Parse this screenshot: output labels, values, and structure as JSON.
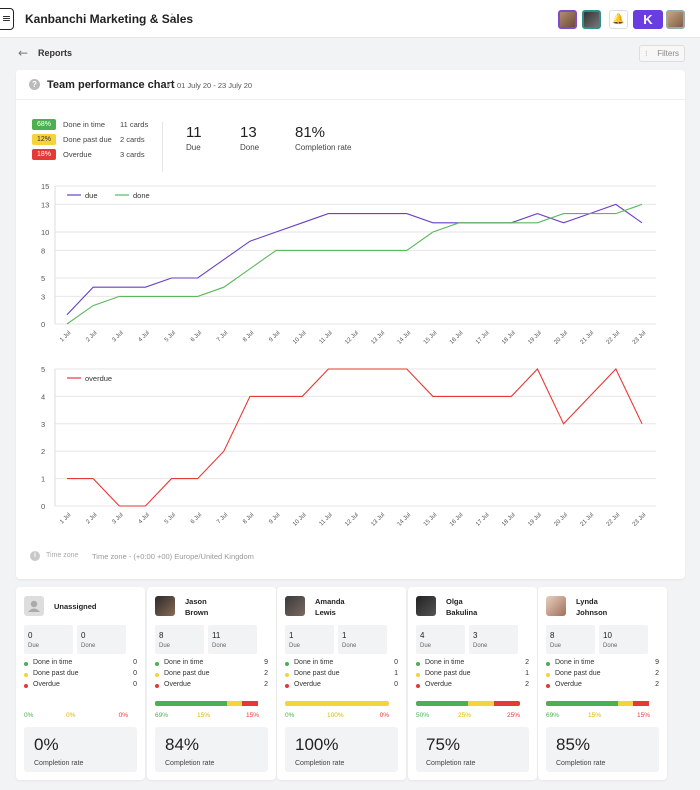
{
  "board": {
    "title": "Kanbanchi Marketing & Sales",
    "more_icon": "⋮",
    "menu_icon": "≡",
    "logo_letter": "K"
  },
  "nav": {
    "back_icon": "←",
    "page": "Reports",
    "filters_label": "Filters",
    "filters_icon": "⁝"
  },
  "chart_card": {
    "title": "Team performance chart",
    "range": "01 July 20 - 23 July 20",
    "help_icon": "?",
    "legend": [
      {
        "pct": "68%",
        "label": "Done in time",
        "count": "11 cards",
        "color": "#4caf50"
      },
      {
        "pct": "12%",
        "label": "Done past due",
        "count": "2 cards",
        "color": "#f5d33a"
      },
      {
        "pct": "18%",
        "label": "Overdue",
        "count": "3 cards",
        "color": "#e53935"
      }
    ],
    "kpis": [
      {
        "value": "11",
        "label": "Due"
      },
      {
        "value": "13",
        "label": "Done"
      },
      {
        "value": "81%",
        "label": "Completion rate"
      }
    ],
    "time_zone_label": "Time zone",
    "time_zone_value": "Time zone - (+0:00 +00) Europe/United Kingdom",
    "tz_icon": "i"
  },
  "chart_data": [
    {
      "type": "line",
      "x": [
        "1 Jul",
        "2 Jul",
        "3 Jul",
        "4 Jul",
        "5 Jul",
        "6 Jul",
        "7 Jul",
        "8 Jul",
        "9 Jul",
        "10 Jul",
        "11 Jul",
        "12 Jul",
        "13 Jul",
        "14 Jul",
        "15 Jul",
        "16 Jul",
        "17 Jul",
        "18 Jul",
        "19 Jul",
        "20 Jul",
        "21 Jul",
        "22 Jul",
        "23 Jul"
      ],
      "y_ticks": [
        0,
        3,
        5,
        8,
        10,
        13,
        15
      ],
      "ylim": [
        0,
        15
      ],
      "grid": true,
      "legend_position": "top-left",
      "series": [
        {
          "name": "due",
          "color": "#6a3fc4",
          "values": [
            1,
            4,
            4,
            4,
            5,
            5,
            7,
            9,
            10,
            11,
            12,
            12,
            12,
            12,
            11,
            11,
            11,
            11,
            12,
            11,
            12,
            13,
            11
          ]
        },
        {
          "name": "done",
          "color": "#5cb85c",
          "values": [
            0,
            2,
            3,
            3,
            3,
            3,
            4,
            6,
            8,
            8,
            8,
            8,
            8,
            8,
            10,
            11,
            11,
            11,
            11,
            12,
            12,
            12,
            13
          ]
        }
      ]
    },
    {
      "type": "line",
      "x": [
        "1 Jul",
        "2 Jul",
        "3 Jul",
        "4 Jul",
        "5 Jul",
        "6 Jul",
        "7 Jul",
        "8 Jul",
        "9 Jul",
        "10 Jul",
        "11 Jul",
        "12 Jul",
        "13 Jul",
        "14 Jul",
        "15 Jul",
        "16 Jul",
        "17 Jul",
        "18 Jul",
        "19 Jul",
        "20 Jul",
        "21 Jul",
        "22 Jul",
        "23 Jul"
      ],
      "y_ticks": [
        0,
        1,
        2,
        3,
        4,
        5
      ],
      "ylim": [
        0,
        5
      ],
      "grid": true,
      "legend_position": "top-left",
      "series": [
        {
          "name": "overdue",
          "color": "#e53935",
          "values": [
            1,
            1,
            0,
            0,
            1,
            1,
            2,
            4,
            4,
            4,
            5,
            5,
            5,
            5,
            4,
            4,
            4,
            4,
            5,
            3,
            4,
            5,
            3
          ]
        }
      ]
    }
  ],
  "users": [
    {
      "name": "Unassigned",
      "due": "0",
      "done": "0",
      "done_in_time": "0",
      "done_past_due": "0",
      "overdue": "0",
      "pct_green": "0%",
      "pct_yellow": "0%",
      "pct_red": "0%",
      "green": 0,
      "yellow": 0,
      "red": 0,
      "rate": "0%",
      "avatar": "person-placeholder"
    },
    {
      "name": "Jason\nBrown",
      "due": "8",
      "done": "11",
      "done_in_time": "9",
      "done_past_due": "2",
      "overdue": "2",
      "pct_green": "69%",
      "pct_yellow": "15%",
      "pct_red": "15%",
      "green": 0.69,
      "yellow": 0.15,
      "red": 0.15,
      "rate": "84%",
      "avatar": "photo"
    },
    {
      "name": "Amanda\nLewis",
      "due": "1",
      "done": "1",
      "done_in_time": "0",
      "done_past_due": "1",
      "overdue": "0",
      "pct_green": "0%",
      "pct_yellow": "100%",
      "pct_red": "0%",
      "green": 0,
      "yellow": 1,
      "red": 0,
      "rate": "100%",
      "avatar": "photo"
    },
    {
      "name": "Olga\nBakulina",
      "due": "4",
      "done": "3",
      "done_in_time": "2",
      "done_past_due": "1",
      "overdue": "2",
      "pct_green": "50%",
      "pct_yellow": "25%",
      "pct_red": "25%",
      "green": 0.5,
      "yellow": 0.25,
      "red": 0.25,
      "rate": "75%",
      "avatar": "photo"
    },
    {
      "name": "Lynda\nJohnson",
      "due": "8",
      "done": "10",
      "done_in_time": "9",
      "done_past_due": "2",
      "overdue": "2",
      "pct_green": "69%",
      "pct_yellow": "15%",
      "pct_red": "15%",
      "green": 0.69,
      "yellow": 0.15,
      "red": 0.15,
      "rate": "85%",
      "avatar": "photo"
    }
  ],
  "user_labels": {
    "due": "Due",
    "done": "Done",
    "done_in_time": "Done in time",
    "done_past_due": "Done past due",
    "overdue": "Overdue",
    "rate": "Completion rate"
  },
  "colors": {
    "green": "#4caf50",
    "yellow": "#f5d33a",
    "red": "#e53935",
    "purple": "#6a3fc4"
  }
}
